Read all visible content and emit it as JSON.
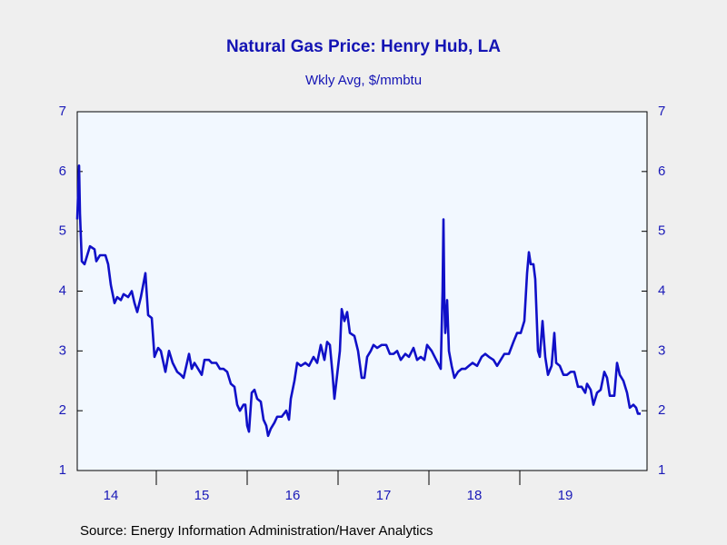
{
  "chart_data": {
    "type": "line",
    "title": "Natural Gas Price: Henry Hub, LA",
    "subtitle": "Wkly Avg, $/mmbtu",
    "source": "Source:  Energy Information Administration/Haver Analytics",
    "color": "#1010c8",
    "xlim": [
      2014.13,
      2020.4
    ],
    "xticks": [
      {
        "value": 2014.5,
        "label": "14"
      },
      {
        "value": 2015.5,
        "label": "15"
      },
      {
        "value": 2016.5,
        "label": "16"
      },
      {
        "value": 2017.5,
        "label": "17"
      },
      {
        "value": 2018.5,
        "label": "18"
      },
      {
        "value": 2019.5,
        "label": "19"
      }
    ],
    "ylim": [
      1,
      7
    ],
    "yticks": [
      1,
      2,
      3,
      4,
      5,
      6,
      7
    ],
    "y2lim": [
      1,
      7
    ],
    "y2ticks": [
      1,
      2,
      3,
      4,
      5,
      6,
      7
    ],
    "x": [
      2014.13,
      2014.15,
      2014.16,
      2014.18,
      2014.21,
      2014.24,
      2014.27,
      2014.32,
      2014.34,
      2014.38,
      2014.44,
      2014.47,
      2014.5,
      2014.54,
      2014.57,
      2014.61,
      2014.64,
      2014.69,
      2014.73,
      2014.76,
      2014.79,
      2014.83,
      2014.88,
      2014.91,
      2014.95,
      2014.98,
      2015.02,
      2015.05,
      2015.1,
      2015.14,
      2015.18,
      2015.23,
      2015.27,
      2015.3,
      2015.36,
      2015.39,
      2015.42,
      2015.46,
      2015.5,
      2015.53,
      2015.58,
      2015.61,
      2015.66,
      2015.7,
      2015.74,
      2015.78,
      2015.82,
      2015.86,
      2015.89,
      2015.92,
      2015.96,
      2015.98,
      2016.0,
      2016.02,
      2016.05,
      2016.08,
      2016.11,
      2016.15,
      2016.18,
      2016.21,
      2016.23,
      2016.26,
      2016.3,
      2016.33,
      2016.38,
      2016.43,
      2016.46,
      2016.48,
      2016.52,
      2016.55,
      2016.59,
      2016.64,
      2016.68,
      2016.73,
      2016.77,
      2016.81,
      2016.85,
      2016.88,
      2016.91,
      2016.94,
      2016.96,
      2016.99,
      2017.02,
      2017.04,
      2017.07,
      2017.1,
      2017.13,
      2017.18,
      2017.22,
      2017.26,
      2017.29,
      2017.32,
      2017.36,
      2017.39,
      2017.43,
      2017.48,
      2017.53,
      2017.57,
      2017.61,
      2017.65,
      2017.69,
      2017.74,
      2017.78,
      2017.83,
      2017.87,
      2017.91,
      2017.95,
      2017.98,
      2018.03,
      2018.08,
      2018.13,
      2018.15,
      2018.16,
      2018.17,
      2018.18,
      2018.2,
      2018.22,
      2018.25,
      2018.28,
      2018.32,
      2018.36,
      2018.4,
      2018.44,
      2018.48,
      2018.53,
      2018.58,
      2018.62,
      2018.66,
      2018.71,
      2018.75,
      2018.79,
      2018.83,
      2018.88,
      2018.93,
      2018.97,
      2019.01,
      2019.05,
      2019.08,
      2019.1,
      2019.12,
      2019.15,
      2019.17,
      2019.2,
      2019.22,
      2019.25,
      2019.28,
      2019.31,
      2019.35,
      2019.38,
      2019.4,
      2019.44,
      2019.48,
      2019.52,
      2019.56,
      2019.6,
      2019.64,
      2019.68,
      2019.72,
      2019.74,
      2019.78,
      2019.81,
      2019.85,
      2019.89,
      2019.93,
      2019.96,
      2019.99,
      2020.04,
      2020.07,
      2020.1,
      2020.14,
      2020.18,
      2020.21,
      2020.25,
      2020.28,
      2020.3,
      2020.33
    ],
    "values": [
      5.2,
      6.1,
      5.3,
      4.5,
      4.45,
      4.6,
      4.75,
      4.7,
      4.5,
      4.6,
      4.6,
      4.45,
      4.1,
      3.8,
      3.9,
      3.85,
      3.95,
      3.9,
      4.0,
      3.8,
      3.65,
      3.9,
      4.3,
      3.6,
      3.55,
      2.9,
      3.05,
      3.0,
      2.65,
      3.0,
      2.8,
      2.65,
      2.6,
      2.55,
      2.95,
      2.7,
      2.8,
      2.7,
      2.6,
      2.85,
      2.85,
      2.8,
      2.8,
      2.7,
      2.7,
      2.65,
      2.45,
      2.4,
      2.1,
      2.0,
      2.1,
      2.1,
      1.75,
      1.65,
      2.3,
      2.35,
      2.2,
      2.15,
      1.85,
      1.75,
      1.58,
      1.7,
      1.8,
      1.9,
      1.9,
      2.0,
      1.85,
      2.2,
      2.5,
      2.8,
      2.75,
      2.8,
      2.75,
      2.9,
      2.8,
      3.1,
      2.85,
      3.15,
      3.1,
      2.6,
      2.2,
      2.6,
      3.0,
      3.7,
      3.5,
      3.65,
      3.3,
      3.25,
      3.0,
      2.55,
      2.55,
      2.9,
      3.0,
      3.1,
      3.05,
      3.1,
      3.1,
      2.95,
      2.95,
      3.0,
      2.85,
      2.95,
      2.9,
      3.05,
      2.85,
      2.9,
      2.85,
      3.1,
      3.0,
      2.85,
      2.7,
      4.0,
      5.2,
      3.8,
      3.3,
      3.85,
      3.0,
      2.75,
      2.55,
      2.65,
      2.7,
      2.7,
      2.75,
      2.8,
      2.75,
      2.9,
      2.95,
      2.9,
      2.85,
      2.75,
      2.85,
      2.95,
      2.95,
      3.15,
      3.3,
      3.3,
      3.5,
      4.3,
      4.65,
      4.45,
      4.45,
      4.2,
      3.0,
      2.9,
      3.5,
      2.9,
      2.6,
      2.75,
      3.3,
      2.8,
      2.75,
      2.6,
      2.6,
      2.65,
      2.65,
      2.4,
      2.4,
      2.3,
      2.45,
      2.35,
      2.1,
      2.3,
      2.35,
      2.65,
      2.55,
      2.25,
      2.25,
      2.8,
      2.6,
      2.5,
      2.3,
      2.05,
      2.1,
      2.05,
      1.95,
      1.95
    ]
  }
}
